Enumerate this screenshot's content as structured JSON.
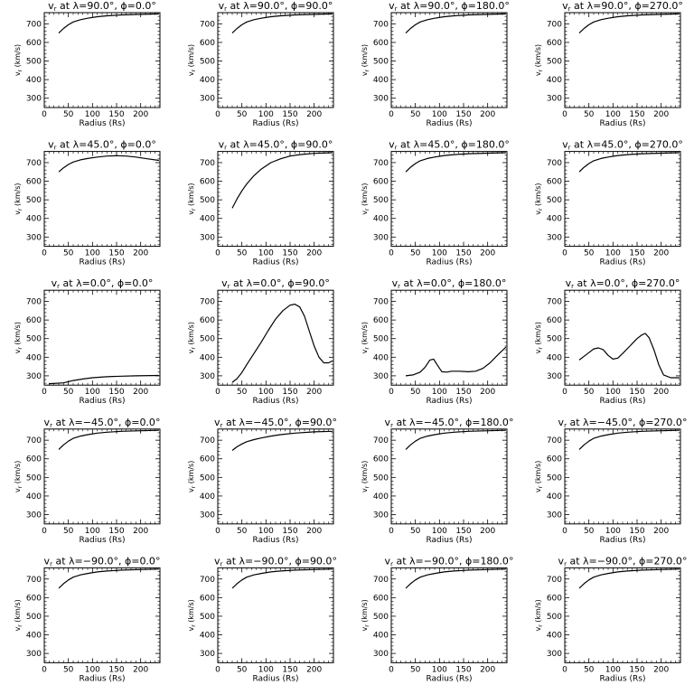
{
  "figure": {
    "rows": 5,
    "cols": 4,
    "xlabel": "Radius (Rs)",
    "ylabel": "v",
    "ylabel_sub": "r",
    "ylabel_rest": " (km/s)",
    "title_prefix": "v",
    "title_sub": "r",
    "title_at": " at ",
    "lambda_sym": "λ",
    "phi_sym": "ϕ",
    "deg": "°",
    "xlim": [
      0,
      240
    ],
    "ylim": [
      250,
      760
    ],
    "xticks": [
      0,
      50,
      100,
      150,
      200
    ],
    "yticks": [
      300,
      400,
      500,
      600,
      700
    ],
    "line_color": "#000000",
    "background": "#ffffff"
  },
  "chart_data": [
    {
      "type": "line",
      "lambda": "90.0",
      "phi": "0.0",
      "points": [
        [
          30,
          650
        ],
        [
          40,
          675
        ],
        [
          50,
          695
        ],
        [
          60,
          710
        ],
        [
          75,
          722
        ],
        [
          90,
          730
        ],
        [
          110,
          738
        ],
        [
          130,
          743
        ],
        [
          160,
          748
        ],
        [
          200,
          751
        ],
        [
          238,
          753
        ]
      ]
    },
    {
      "type": "line",
      "lambda": "90.0",
      "phi": "90.0",
      "points": [
        [
          30,
          650
        ],
        [
          40,
          675
        ],
        [
          50,
          695
        ],
        [
          60,
          710
        ],
        [
          75,
          722
        ],
        [
          90,
          730
        ],
        [
          110,
          738
        ],
        [
          130,
          743
        ],
        [
          160,
          748
        ],
        [
          200,
          751
        ],
        [
          238,
          753
        ]
      ]
    },
    {
      "type": "line",
      "lambda": "90.0",
      "phi": "180.0",
      "points": [
        [
          30,
          650
        ],
        [
          40,
          675
        ],
        [
          50,
          695
        ],
        [
          60,
          710
        ],
        [
          75,
          722
        ],
        [
          90,
          730
        ],
        [
          110,
          738
        ],
        [
          130,
          743
        ],
        [
          160,
          748
        ],
        [
          200,
          751
        ],
        [
          238,
          753
        ]
      ]
    },
    {
      "type": "line",
      "lambda": "90.0",
      "phi": "270.0",
      "points": [
        [
          30,
          650
        ],
        [
          40,
          675
        ],
        [
          50,
          695
        ],
        [
          60,
          710
        ],
        [
          75,
          722
        ],
        [
          90,
          730
        ],
        [
          110,
          738
        ],
        [
          130,
          743
        ],
        [
          160,
          748
        ],
        [
          200,
          751
        ],
        [
          238,
          753
        ]
      ]
    },
    {
      "type": "line",
      "lambda": "45.0",
      "phi": "0.0",
      "points": [
        [
          30,
          650
        ],
        [
          40,
          672
        ],
        [
          50,
          690
        ],
        [
          60,
          703
        ],
        [
          75,
          715
        ],
        [
          90,
          722
        ],
        [
          110,
          730
        ],
        [
          130,
          735
        ],
        [
          150,
          737
        ],
        [
          170,
          735
        ],
        [
          190,
          730
        ],
        [
          215,
          720
        ],
        [
          238,
          712
        ]
      ]
    },
    {
      "type": "line",
      "lambda": "45.0",
      "phi": "90.0",
      "points": [
        [
          30,
          455
        ],
        [
          40,
          505
        ],
        [
          50,
          548
        ],
        [
          60,
          585
        ],
        [
          75,
          630
        ],
        [
          90,
          665
        ],
        [
          110,
          700
        ],
        [
          130,
          720
        ],
        [
          150,
          735
        ],
        [
          170,
          743
        ],
        [
          200,
          750
        ],
        [
          238,
          753
        ]
      ]
    },
    {
      "type": "line",
      "lambda": "45.0",
      "phi": "180.0",
      "points": [
        [
          30,
          650
        ],
        [
          40,
          675
        ],
        [
          50,
          695
        ],
        [
          60,
          710
        ],
        [
          75,
          722
        ],
        [
          90,
          730
        ],
        [
          110,
          738
        ],
        [
          130,
          743
        ],
        [
          160,
          748
        ],
        [
          200,
          751
        ],
        [
          238,
          753
        ]
      ]
    },
    {
      "type": "line",
      "lambda": "45.0",
      "phi": "270.0",
      "points": [
        [
          30,
          650
        ],
        [
          40,
          675
        ],
        [
          50,
          695
        ],
        [
          60,
          710
        ],
        [
          75,
          722
        ],
        [
          90,
          730
        ],
        [
          110,
          738
        ],
        [
          130,
          743
        ],
        [
          160,
          748
        ],
        [
          200,
          751
        ],
        [
          238,
          753
        ]
      ]
    },
    {
      "type": "line",
      "lambda": "0.0",
      "phi": "0.0",
      "points": [
        [
          10,
          258
        ],
        [
          40,
          262
        ],
        [
          60,
          275
        ],
        [
          80,
          283
        ],
        [
          100,
          290
        ],
        [
          130,
          295
        ],
        [
          160,
          298
        ],
        [
          190,
          300
        ],
        [
          238,
          302
        ]
      ]
    },
    {
      "type": "line",
      "lambda": "0.0",
      "phi": "90.0",
      "points": [
        [
          30,
          265
        ],
        [
          40,
          285
        ],
        [
          50,
          318
        ],
        [
          60,
          360
        ],
        [
          75,
          420
        ],
        [
          90,
          480
        ],
        [
          105,
          545
        ],
        [
          120,
          605
        ],
        [
          135,
          650
        ],
        [
          150,
          680
        ],
        [
          160,
          685
        ],
        [
          170,
          670
        ],
        [
          180,
          620
        ],
        [
          190,
          540
        ],
        [
          200,
          460
        ],
        [
          210,
          400
        ],
        [
          220,
          370
        ],
        [
          230,
          370
        ],
        [
          238,
          380
        ]
      ]
    },
    {
      "type": "line",
      "lambda": "0.0",
      "phi": "180.0",
      "points": [
        [
          30,
          300
        ],
        [
          45,
          305
        ],
        [
          60,
          320
        ],
        [
          70,
          345
        ],
        [
          80,
          385
        ],
        [
          88,
          390
        ],
        [
          95,
          360
        ],
        [
          105,
          322
        ],
        [
          115,
          320
        ],
        [
          125,
          325
        ],
        [
          140,
          325
        ],
        [
          160,
          322
        ],
        [
          175,
          325
        ],
        [
          190,
          340
        ],
        [
          205,
          370
        ],
        [
          220,
          410
        ],
        [
          238,
          455
        ]
      ]
    },
    {
      "type": "line",
      "lambda": "0.0",
      "phi": "270.0",
      "points": [
        [
          30,
          385
        ],
        [
          40,
          405
        ],
        [
          50,
          425
        ],
        [
          60,
          445
        ],
        [
          70,
          450
        ],
        [
          80,
          440
        ],
        [
          90,
          410
        ],
        [
          100,
          390
        ],
        [
          110,
          395
        ],
        [
          120,
          420
        ],
        [
          135,
          460
        ],
        [
          150,
          500
        ],
        [
          160,
          520
        ],
        [
          167,
          528
        ],
        [
          175,
          505
        ],
        [
          185,
          440
        ],
        [
          195,
          360
        ],
        [
          205,
          305
        ],
        [
          220,
          290
        ],
        [
          238,
          290
        ]
      ]
    },
    {
      "type": "line",
      "lambda": "−45.0",
      "phi": "0.0",
      "points": [
        [
          30,
          650
        ],
        [
          40,
          675
        ],
        [
          50,
          695
        ],
        [
          60,
          710
        ],
        [
          75,
          722
        ],
        [
          90,
          730
        ],
        [
          110,
          738
        ],
        [
          130,
          743
        ],
        [
          160,
          748
        ],
        [
          200,
          751
        ],
        [
          238,
          753
        ]
      ]
    },
    {
      "type": "line",
      "lambda": "−45.0",
      "phi": "90.0",
      "points": [
        [
          30,
          645
        ],
        [
          40,
          665
        ],
        [
          50,
          680
        ],
        [
          60,
          692
        ],
        [
          75,
          703
        ],
        [
          90,
          712
        ],
        [
          110,
          722
        ],
        [
          130,
          730
        ],
        [
          160,
          738
        ],
        [
          200,
          745
        ],
        [
          238,
          748
        ]
      ]
    },
    {
      "type": "line",
      "lambda": "−45.0",
      "phi": "180.0",
      "points": [
        [
          30,
          650
        ],
        [
          40,
          675
        ],
        [
          50,
          695
        ],
        [
          60,
          710
        ],
        [
          75,
          722
        ],
        [
          90,
          730
        ],
        [
          110,
          738
        ],
        [
          130,
          743
        ],
        [
          160,
          748
        ],
        [
          200,
          751
        ],
        [
          238,
          753
        ]
      ]
    },
    {
      "type": "line",
      "lambda": "−45.0",
      "phi": "270.0",
      "points": [
        [
          30,
          650
        ],
        [
          40,
          675
        ],
        [
          50,
          695
        ],
        [
          60,
          710
        ],
        [
          75,
          722
        ],
        [
          90,
          730
        ],
        [
          110,
          738
        ],
        [
          130,
          743
        ],
        [
          160,
          748
        ],
        [
          200,
          751
        ],
        [
          238,
          753
        ]
      ]
    },
    {
      "type": "line",
      "lambda": "−90.0",
      "phi": "0.0",
      "points": [
        [
          30,
          650
        ],
        [
          40,
          675
        ],
        [
          50,
          695
        ],
        [
          60,
          710
        ],
        [
          75,
          722
        ],
        [
          90,
          730
        ],
        [
          110,
          738
        ],
        [
          130,
          743
        ],
        [
          160,
          748
        ],
        [
          200,
          751
        ],
        [
          238,
          753
        ]
      ]
    },
    {
      "type": "line",
      "lambda": "−90.0",
      "phi": "90.0",
      "points": [
        [
          30,
          650
        ],
        [
          40,
          675
        ],
        [
          50,
          695
        ],
        [
          60,
          710
        ],
        [
          75,
          722
        ],
        [
          90,
          730
        ],
        [
          110,
          738
        ],
        [
          130,
          743
        ],
        [
          160,
          748
        ],
        [
          200,
          751
        ],
        [
          238,
          753
        ]
      ]
    },
    {
      "type": "line",
      "lambda": "−90.0",
      "phi": "180.0",
      "points": [
        [
          30,
          650
        ],
        [
          40,
          675
        ],
        [
          50,
          695
        ],
        [
          60,
          710
        ],
        [
          75,
          722
        ],
        [
          90,
          730
        ],
        [
          110,
          738
        ],
        [
          130,
          743
        ],
        [
          160,
          748
        ],
        [
          200,
          751
        ],
        [
          238,
          753
        ]
      ]
    },
    {
      "type": "line",
      "lambda": "−90.0",
      "phi": "270.0",
      "points": [
        [
          30,
          650
        ],
        [
          40,
          675
        ],
        [
          50,
          695
        ],
        [
          60,
          710
        ],
        [
          75,
          722
        ],
        [
          90,
          730
        ],
        [
          110,
          738
        ],
        [
          130,
          743
        ],
        [
          160,
          748
        ],
        [
          200,
          751
        ],
        [
          238,
          753
        ]
      ]
    }
  ]
}
